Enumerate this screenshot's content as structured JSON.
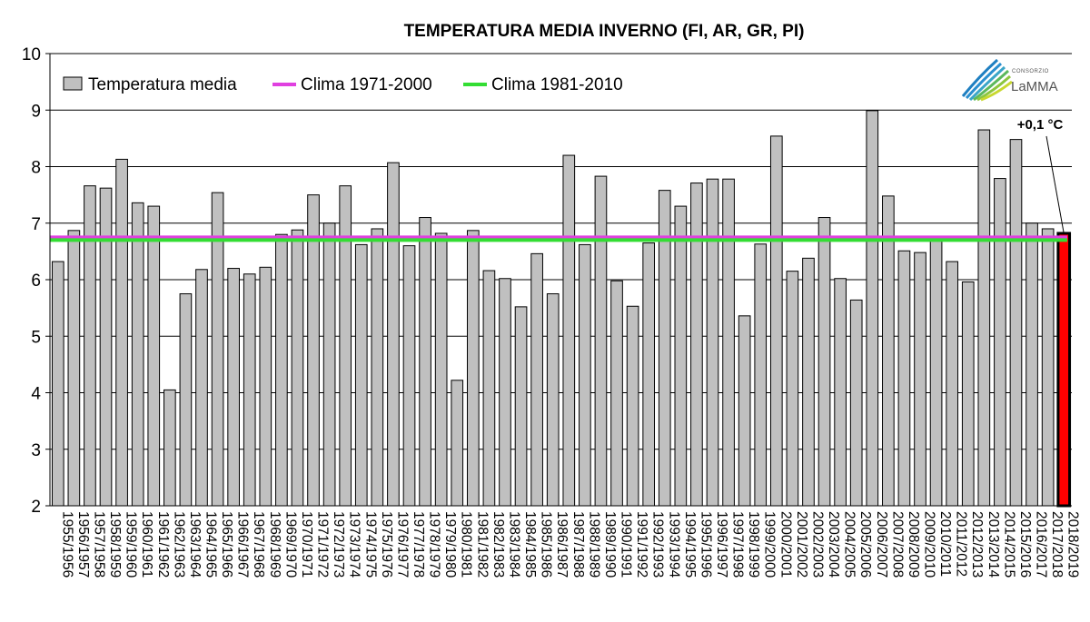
{
  "chart_data": {
    "type": "bar",
    "title": "TEMPERATURA MEDIA INVERNO (FI, AR, GR, PI)",
    "xlabel": "",
    "ylabel": "",
    "ylim": [
      2,
      10
    ],
    "yticks": [
      2,
      3,
      4,
      5,
      6,
      7,
      8,
      9,
      10
    ],
    "grid": "horizontal",
    "legend_position": "top-left",
    "categories": [
      "1955/1956",
      "1956/1957",
      "1957/1958",
      "1958/1959",
      "1959/1960",
      "1960/1961",
      "1961/1962",
      "1962/1963",
      "1963/1964",
      "1964/1965",
      "1965/1966",
      "1966/1967",
      "1967/1968",
      "1968/1969",
      "1969/1970",
      "1970/1971",
      "1971/1972",
      "1972/1973",
      "1973/1974",
      "1974/1975",
      "1975/1976",
      "1976/1977",
      "1977/1978",
      "1978/1979",
      "1979/1980",
      "1980/1981",
      "1981/1982",
      "1982/1983",
      "1983/1984",
      "1984/1985",
      "1985/1986",
      "1986/1987",
      "1987/1988",
      "1988/1989",
      "1989/1990",
      "1990/1991",
      "1991/1992",
      "1992/1993",
      "1993/1994",
      "1994/1995",
      "1995/1996",
      "1996/1997",
      "1997/1998",
      "1998/1999",
      "1999/2000",
      "2000/2001",
      "2001/2002",
      "2002/2003",
      "2003/2004",
      "2004/2005",
      "2005/2006",
      "2006/2007",
      "2007/2008",
      "2008/2009",
      "2009/2010",
      "2010/2011",
      "2011/2012",
      "2012/2013",
      "2013/2014",
      "2014/2015",
      "2015/2016",
      "2016/2017",
      "2017/2018",
      "2018/2019"
    ],
    "series": [
      {
        "name": "Temperatura media",
        "color": "#c0c0c0",
        "highlight_last_color": "#ff0000",
        "values": [
          6.32,
          6.87,
          7.66,
          7.62,
          8.13,
          7.36,
          7.3,
          4.05,
          5.75,
          6.18,
          7.54,
          6.2,
          6.1,
          6.22,
          6.8,
          6.88,
          7.5,
          7.0,
          7.66,
          6.62,
          6.9,
          8.07,
          6.6,
          7.1,
          6.82,
          4.22,
          6.87,
          6.16,
          6.02,
          5.52,
          6.46,
          5.75,
          8.2,
          6.62,
          7.83,
          5.98,
          5.53,
          6.65,
          7.58,
          7.3,
          7.71,
          7.78,
          7.78,
          5.36,
          6.63,
          8.54,
          6.15,
          6.38,
          7.1,
          6.02,
          5.64,
          8.99,
          7.48,
          6.51,
          6.48,
          6.72,
          6.32,
          5.96,
          8.65,
          7.79,
          8.48,
          7.0,
          6.9,
          6.82
        ]
      },
      {
        "name": "Clima 1971-2000",
        "color": "#e040e0",
        "value": 6.75
      },
      {
        "name": "Clima 1981-2010",
        "color": "#33dd33",
        "value": 6.7
      }
    ],
    "annotations": [
      {
        "text": "+0,1 °C",
        "target_category": "2018/2019"
      }
    ]
  },
  "logo": {
    "small_text": "CONSORZIO",
    "big_text": "LaMMA"
  }
}
